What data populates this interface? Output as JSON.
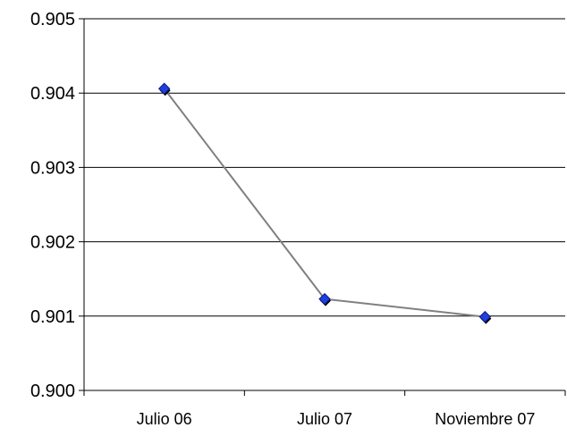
{
  "chart_data": {
    "type": "line",
    "title": "",
    "xlabel": "",
    "ylabel": "",
    "categories": [
      "Julio 06",
      "Julio 07",
      "Noviembre 07"
    ],
    "series": [
      {
        "values": [
          0.90406,
          0.90123,
          0.90099
        ]
      }
    ],
    "ylim": [
      0.9,
      0.905
    ],
    "yticks": [
      "0.900",
      "0.901",
      "0.902",
      "0.903",
      "0.904",
      "0.905"
    ],
    "grid": true,
    "legend": "none",
    "colors": {
      "line": "#808080",
      "marker": "#1f3fe0",
      "marker_shadow": "#000000",
      "grid": "#000000",
      "axis": "#000000"
    }
  }
}
